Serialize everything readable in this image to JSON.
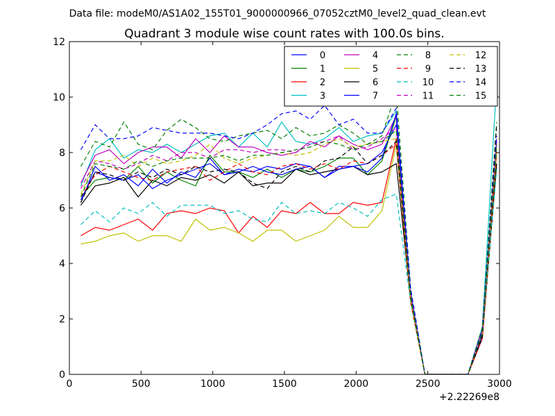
{
  "suptitle": "Data file: modeM0/AS1A02_155T01_9000000966_07052cztM0_level2_quad_clean.evt",
  "chart_data": {
    "type": "line",
    "title": "Quadrant 3 module wise count rates with 100.0s bins.",
    "xlabel": "",
    "ylabel": "",
    "x_offset_label": "+2.22269e8",
    "xlim": [
      0,
      3000
    ],
    "ylim": [
      0,
      12
    ],
    "xticks": [
      0,
      500,
      1000,
      1500,
      2000,
      2500,
      3000
    ],
    "yticks": [
      0,
      2,
      4,
      6,
      8,
      10,
      12
    ],
    "x": [
      80,
      180,
      280,
      380,
      480,
      580,
      680,
      780,
      880,
      980,
      1080,
      1180,
      1280,
      1380,
      1480,
      1580,
      1680,
      1780,
      1880,
      1980,
      2080,
      2180,
      2280,
      2380,
      2480,
      2580,
      2680,
      2780,
      2880,
      2980
    ],
    "legend_position": "top-right",
    "series": [
      {
        "name": "0",
        "color": "#0000ff",
        "dash": "solid",
        "values": [
          6.2,
          7.5,
          7.0,
          7.2,
          6.8,
          7.4,
          6.9,
          7.3,
          7.1,
          7.8,
          7.2,
          7.4,
          7.3,
          7.5,
          7.4,
          7.6,
          7.5,
          7.1,
          7.5,
          7.5,
          7.6,
          8.0,
          9.0,
          2.9,
          0.0,
          0.0,
          0.0,
          0.0,
          1.5,
          8.3
        ]
      },
      {
        "name": "1",
        "color": "#008000",
        "dash": "solid",
        "values": [
          6.4,
          7.0,
          7.1,
          7.0,
          7.5,
          6.9,
          7.3,
          7.0,
          6.8,
          7.9,
          7.3,
          7.3,
          7.1,
          7.4,
          7.1,
          7.4,
          7.3,
          7.5,
          7.8,
          7.8,
          7.2,
          7.7,
          9.3,
          2.8,
          0.0,
          0.0,
          0.0,
          0.0,
          1.4,
          8.0
        ]
      },
      {
        "name": "2",
        "color": "#ff0000",
        "dash": "solid",
        "values": [
          5.0,
          5.3,
          5.2,
          5.4,
          5.6,
          5.2,
          5.8,
          5.9,
          5.8,
          6.0,
          5.9,
          5.1,
          5.7,
          5.3,
          5.9,
          5.8,
          6.2,
          5.8,
          5.8,
          6.2,
          6.1,
          6.2,
          8.5,
          2.6,
          0.0,
          0.0,
          0.0,
          0.0,
          1.3,
          7.6
        ]
      },
      {
        "name": "3",
        "color": "#00bfbf",
        "dash": "solid",
        "values": [
          6.8,
          8.1,
          8.5,
          7.8,
          8.1,
          8.0,
          8.3,
          8.0,
          8.3,
          8.6,
          8.7,
          8.2,
          8.7,
          8.2,
          9.1,
          8.4,
          8.3,
          8.5,
          8.9,
          8.4,
          8.6,
          8.7,
          9.5,
          3.0,
          0.0,
          0.0,
          0.0,
          0.0,
          1.7,
          10.5
        ]
      },
      {
        "name": "4",
        "color": "#bf00bf",
        "dash": "solid",
        "values": [
          6.9,
          7.9,
          8.1,
          7.6,
          8.0,
          8.2,
          8.2,
          7.8,
          8.5,
          8.0,
          8.6,
          8.2,
          8.2,
          8.0,
          7.9,
          8.0,
          8.4,
          8.2,
          8.6,
          8.3,
          8.1,
          8.3,
          9.3,
          2.9,
          0.0,
          0.0,
          0.0,
          0.0,
          1.6,
          8.4
        ]
      },
      {
        "name": "5",
        "color": "#bfbf00",
        "dash": "solid",
        "values": [
          4.7,
          4.8,
          5.0,
          5.1,
          4.8,
          5.0,
          5.0,
          4.8,
          5.6,
          5.2,
          5.3,
          5.1,
          4.8,
          5.2,
          5.2,
          4.8,
          5.0,
          5.2,
          5.7,
          5.3,
          5.3,
          5.9,
          8.3,
          2.7,
          0.0,
          0.0,
          0.0,
          0.0,
          1.4,
          7.5
        ]
      },
      {
        "name": "6",
        "color": "#000000",
        "dash": "solid",
        "values": [
          6.1,
          6.8,
          6.9,
          7.1,
          6.4,
          7.0,
          6.8,
          7.1,
          7.0,
          7.2,
          6.9,
          7.3,
          6.8,
          6.9,
          6.9,
          7.4,
          7.2,
          7.3,
          7.4,
          7.5,
          7.2,
          7.3,
          7.6,
          2.7,
          0.0,
          0.0,
          0.0,
          0.0,
          1.3,
          7.6
        ]
      },
      {
        "name": "7",
        "color": "#0000ff",
        "dash": "solid",
        "values": [
          6.3,
          7.3,
          7.1,
          7.0,
          7.2,
          6.7,
          7.0,
          7.2,
          7.4,
          7.6,
          7.2,
          7.3,
          7.5,
          7.3,
          7.2,
          7.4,
          7.5,
          7.1,
          7.4,
          7.5,
          7.3,
          7.8,
          9.4,
          2.8,
          0.0,
          0.0,
          0.0,
          0.0,
          1.4,
          8.2
        ]
      },
      {
        "name": "8",
        "color": "#008000",
        "dash": "dashed",
        "values": [
          7.5,
          8.4,
          8.2,
          9.1,
          8.3,
          8.1,
          8.8,
          9.2,
          8.9,
          8.5,
          8.4,
          8.6,
          8.7,
          8.8,
          8.5,
          8.9,
          8.6,
          8.7,
          9.0,
          8.7,
          8.3,
          8.6,
          10.2,
          3.1,
          0.0,
          0.0,
          0.0,
          0.0,
          1.7,
          9.1
        ]
      },
      {
        "name": "9",
        "color": "#ff0000",
        "dash": "dashed",
        "values": [
          6.4,
          7.2,
          7.5,
          7.3,
          7.1,
          7.0,
          7.3,
          7.4,
          7.5,
          7.0,
          7.3,
          7.6,
          7.3,
          7.2,
          7.5,
          7.6,
          7.4,
          7.6,
          7.4,
          7.7,
          7.6,
          7.9,
          8.3,
          2.6,
          0.0,
          0.0,
          0.0,
          0.0,
          1.3,
          8.0
        ]
      },
      {
        "name": "10",
        "color": "#00bfbf",
        "dash": "dashed",
        "values": [
          5.4,
          5.9,
          5.5,
          6.0,
          5.8,
          6.2,
          5.7,
          6.1,
          6.1,
          6.1,
          5.8,
          5.9,
          5.6,
          5.5,
          6.2,
          5.8,
          5.9,
          5.8,
          6.2,
          6.0,
          5.7,
          6.3,
          6.5,
          2.6,
          0.0,
          0.0,
          0.0,
          0.0,
          1.5,
          7.4
        ]
      },
      {
        "name": "11",
        "color": "#bf00bf",
        "dash": "dashed",
        "values": [
          6.7,
          7.7,
          7.6,
          7.4,
          7.6,
          7.9,
          7.7,
          8.0,
          8.0,
          7.8,
          8.1,
          8.1,
          8.0,
          8.1,
          8.1,
          8.0,
          8.3,
          8.4,
          8.6,
          8.1,
          8.2,
          8.5,
          8.9,
          2.8,
          0.0,
          0.0,
          0.0,
          0.0,
          1.6,
          8.5
        ]
      },
      {
        "name": "12",
        "color": "#bfbf00",
        "dash": "dashed",
        "values": [
          6.5,
          7.7,
          7.7,
          7.9,
          7.5,
          7.8,
          7.6,
          7.7,
          7.9,
          8.3,
          7.8,
          7.6,
          7.8,
          7.9,
          8.0,
          7.9,
          8.0,
          8.3,
          8.5,
          8.2,
          8.3,
          8.4,
          8.5,
          2.7,
          0.0,
          0.0,
          0.0,
          0.0,
          1.5,
          8.2
        ]
      },
      {
        "name": "13",
        "color": "#000000",
        "dash": "dashed",
        "values": [
          6.2,
          7.3,
          7.2,
          7.0,
          7.3,
          7.1,
          7.4,
          7.2,
          7.5,
          7.3,
          7.4,
          7.3,
          6.9,
          6.7,
          7.3,
          7.5,
          7.3,
          7.7,
          7.8,
          8.2,
          7.6,
          7.9,
          8.4,
          2.8,
          0.0,
          0.0,
          0.0,
          0.0,
          1.4,
          9.0
        ]
      },
      {
        "name": "14",
        "color": "#0000ff",
        "dash": "dashed",
        "values": [
          8.1,
          9.0,
          8.5,
          8.5,
          8.6,
          8.9,
          8.8,
          8.7,
          8.7,
          8.7,
          8.6,
          8.5,
          8.7,
          9.0,
          9.4,
          9.5,
          9.2,
          9.7,
          9.0,
          9.2,
          8.7,
          8.7,
          9.6,
          3.1,
          0.0,
          0.0,
          0.0,
          0.0,
          1.6,
          8.6
        ]
      },
      {
        "name": "15",
        "color": "#008000",
        "dash": "dashed",
        "values": [
          6.4,
          7.6,
          7.5,
          7.4,
          7.7,
          7.5,
          7.7,
          7.8,
          7.8,
          7.8,
          7.9,
          7.7,
          7.9,
          7.9,
          8.0,
          8.1,
          8.2,
          8.4,
          8.3,
          8.1,
          8.3,
          8.4,
          8.8,
          2.8,
          0.0,
          0.0,
          0.0,
          0.0,
          1.5,
          8.3
        ]
      }
    ]
  }
}
